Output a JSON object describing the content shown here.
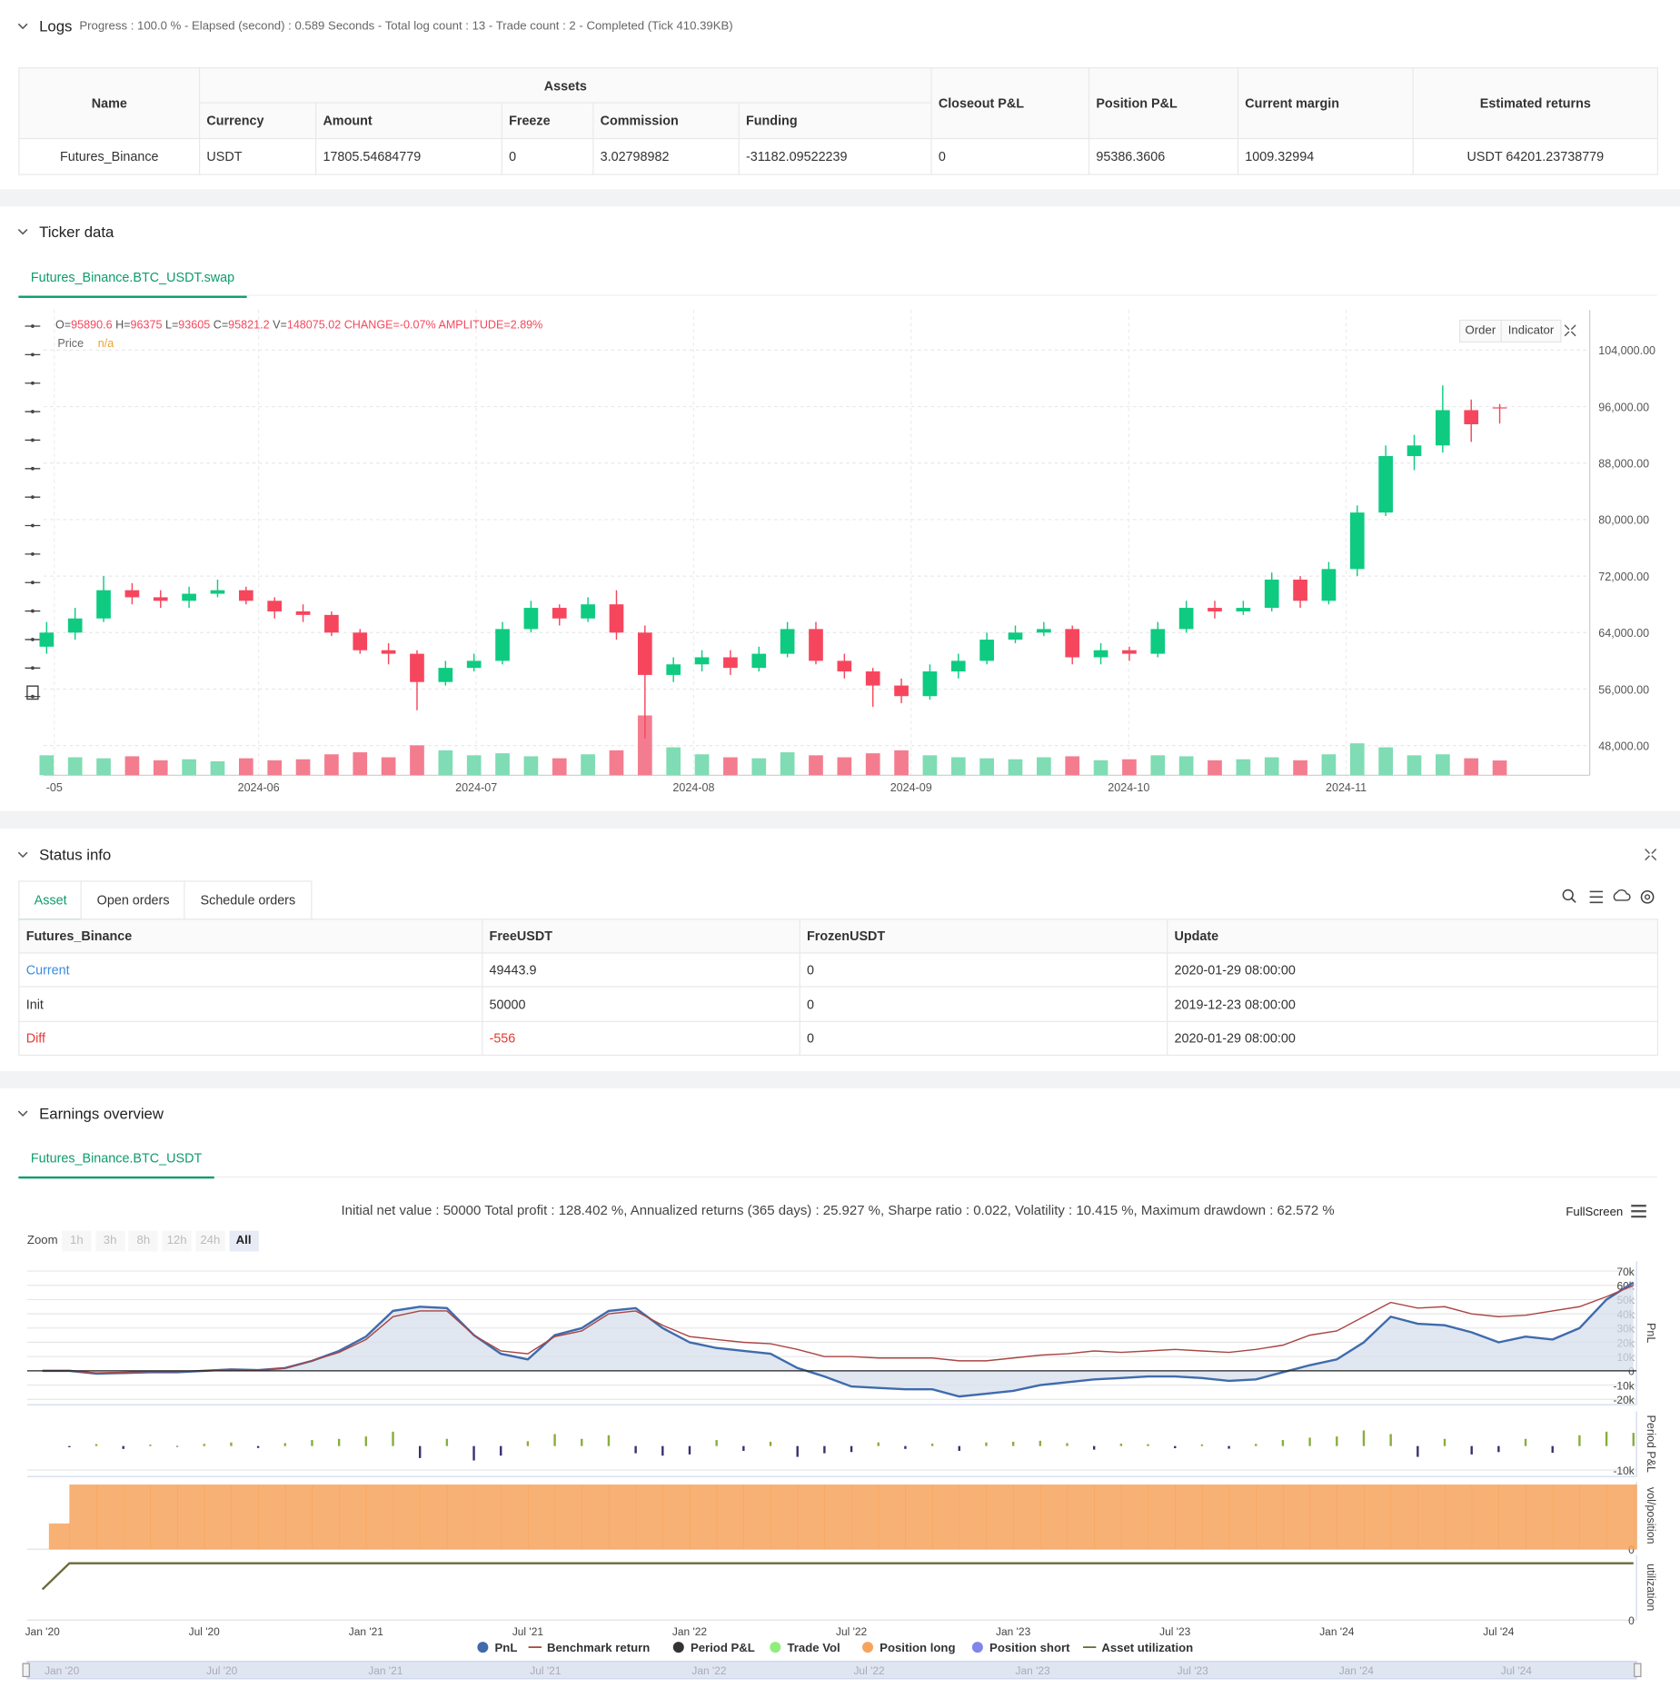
{
  "logs": {
    "title": "Logs",
    "summary": "Progress : 100.0 % - Elapsed (second) : 0.589  Seconds - Total log count : 13 - Trade count : 2 - Completed (Tick 410.39KB)",
    "table": {
      "headers": [
        "Name",
        "Assets",
        "Closeout P&L",
        "Position P&L",
        "Current margin",
        "Estimated returns"
      ],
      "subheaders": [
        "Currency",
        "Amount",
        "Freeze",
        "Commission",
        "Funding"
      ],
      "rows": [
        [
          "Futures_Binance",
          "USDT",
          "17805.54684779",
          "0",
          "3.02798982",
          "-31182.09522239",
          "0",
          "95386.3606",
          "1009.32994",
          "USDT 64201.23738779"
        ]
      ]
    }
  },
  "ticker": {
    "title": "Ticker data",
    "tab": "Futures_Binance.BTC_USDT.swap",
    "buttons": [
      "Order",
      "Indicator"
    ],
    "ohlc_labels": [
      "O=",
      "H=",
      "L=",
      "C=",
      "V="
    ],
    "change": "CHANGE=-0.07%",
    "amplitude": "AMPLITUDE=2.89%",
    "legend": {
      "label": "Price",
      "value": "n/a"
    }
  },
  "status": {
    "title": "Status info",
    "tabs": [
      "Asset",
      "Open orders",
      "Schedule orders"
    ],
    "table": {
      "headers": [
        "Futures_Binance",
        "FreeUSDT",
        "FrozenUSDT",
        "Update"
      ],
      "rows": [
        [
          "Current",
          "49443.9",
          "0",
          "2020-01-29 08:00:00"
        ],
        [
          "Init",
          "50000",
          "0",
          "2019-12-23 08:00:00"
        ],
        [
          "Diff",
          "-556",
          "0",
          "2020-01-29 08:00:00"
        ]
      ]
    }
  },
  "earnings": {
    "title": "Earnings overview",
    "tab": "Futures_Binance.BTC_USDT",
    "summary": "Initial net value : 50000 Total profit : 128.402 %, Annualized returns (365 days) : 25.927 %, Sharpe ratio : 0.022, Volatility : 10.415 %, Maximum drawdown : 62.572 %",
    "fullscreen": "FullScreen",
    "zoom_label": "Zoom",
    "zoom_buttons": [
      "1h",
      "3h",
      "8h",
      "12h",
      "24h",
      "All"
    ],
    "extra_legend": [
      {
        "name": "Trade Vol",
        "color": "#90ed7d"
      },
      {
        "name": "Position short",
        "color": "#8085e9"
      }
    ]
  },
  "chart_data": [
    {
      "type": "candlestick",
      "up_color": "#0ecb81",
      "down_color": "#f6465d",
      "volume_up_color": "#7fdcb4",
      "volume_down_color": "#f37d8f",
      "grid": true,
      "open": [
        62000,
        64000,
        66000,
        70000,
        69000,
        68500,
        69500,
        70000,
        68500,
        67000,
        66500,
        64000,
        61500,
        61000,
        57000,
        59000,
        60000,
        64500,
        67500,
        66000,
        68000,
        64000,
        58000,
        59500,
        60500,
        59000,
        61000,
        64500,
        60000,
        58500,
        56500,
        55000,
        58500,
        60000,
        63000,
        64000,
        64500,
        60500,
        61500,
        61000,
        64500,
        67500,
        67000,
        67500,
        71500,
        68500,
        73000,
        81000,
        89000,
        90500,
        95500,
        95890.6
      ],
      "high": [
        65500,
        67500,
        72000,
        71000,
        70000,
        70500,
        71500,
        70500,
        69000,
        68000,
        67000,
        64500,
        62500,
        61500,
        60000,
        61000,
        65500,
        68500,
        68000,
        69000,
        70000,
        65000,
        60500,
        61500,
        61500,
        62000,
        65500,
        65500,
        61000,
        59000,
        57500,
        59500,
        61000,
        64000,
        65000,
        65500,
        65000,
        62500,
        62000,
        65500,
        68500,
        68500,
        68500,
        72500,
        72000,
        74000,
        82000,
        90500,
        92000,
        99000,
        97000,
        96375
      ],
      "low": [
        61000,
        63000,
        65500,
        68000,
        67500,
        67500,
        69000,
        68000,
        66000,
        65500,
        63500,
        61000,
        59500,
        53000,
        56500,
        58500,
        59500,
        64000,
        65000,
        65500,
        63000,
        49000,
        57000,
        58500,
        58000,
        58500,
        60500,
        59500,
        57500,
        53500,
        54000,
        54500,
        57500,
        59500,
        62500,
        63500,
        59500,
        59500,
        60000,
        60500,
        64000,
        66000,
        66500,
        67000,
        67500,
        68000,
        72000,
        80500,
        87000,
        89500,
        91000,
        93605
      ],
      "close": [
        64000,
        66000,
        70000,
        69000,
        68500,
        69500,
        70000,
        68500,
        67000,
        66500,
        64000,
        61500,
        61000,
        57000,
        59000,
        60000,
        64500,
        67500,
        66000,
        68000,
        64000,
        58000,
        59500,
        60500,
        59000,
        61000,
        64500,
        60000,
        58500,
        56500,
        55000,
        58500,
        60000,
        63000,
        64000,
        64500,
        60500,
        61500,
        61000,
        64500,
        67500,
        67000,
        67500,
        71500,
        68500,
        73000,
        81000,
        89000,
        90500,
        95500,
        93500,
        95821.2
      ],
      "volume": [
        200000,
        180000,
        170000,
        190000,
        150000,
        160000,
        140000,
        170000,
        150000,
        160000,
        210000,
        230000,
        180000,
        300000,
        250000,
        200000,
        220000,
        190000,
        170000,
        210000,
        250000,
        600000,
        280000,
        210000,
        180000,
        170000,
        230000,
        200000,
        180000,
        220000,
        250000,
        200000,
        180000,
        170000,
        160000,
        180000,
        190000,
        150000,
        160000,
        200000,
        190000,
        150000,
        160000,
        180000,
        150000,
        210000,
        320000,
        280000,
        200000,
        210000,
        170000,
        148075.02
      ],
      "ylim": [
        43800,
        109700
      ],
      "yticks": [
        {
          "value": 48000,
          "label": "48,000.00"
        },
        {
          "value": 56000,
          "label": "56,000.00"
        },
        {
          "value": 64000,
          "label": "64,000.00"
        },
        {
          "value": 72000,
          "label": "72,000.00"
        },
        {
          "value": 80000,
          "label": "80,000.00"
        },
        {
          "value": 88000,
          "label": "88,000.00"
        },
        {
          "value": 96000,
          "label": "96,000.00"
        },
        {
          "value": 104000,
          "label": "104,000.00"
        }
      ],
      "xlim": [
        -0.11,
        54.16
      ],
      "xticks": [
        {
          "value": 0.27,
          "label": "-05"
        },
        {
          "value": 7.44,
          "label": "2024-06"
        },
        {
          "value": 15.08,
          "label": "2024-07"
        },
        {
          "value": 22.71,
          "label": "2024-08"
        },
        {
          "value": 30.34,
          "label": "2024-09"
        },
        {
          "value": 37.98,
          "label": "2024-10"
        },
        {
          "value": 45.61,
          "label": "2024-11"
        }
      ]
    },
    {
      "type": "line",
      "y_title": "PnL",
      "categories": [
        "Jan '20",
        null,
        null,
        null,
        null,
        null,
        "Jul '20",
        null,
        null,
        null,
        null,
        null,
        "Jan '21",
        null,
        null,
        null,
        null,
        null,
        "Jul '21",
        null,
        null,
        null,
        null,
        null,
        "Jan '22",
        null,
        null,
        null,
        null,
        null,
        "Jul '22",
        null,
        null,
        null,
        null,
        null,
        "Jan '23",
        null,
        null,
        null,
        null,
        null,
        "Jul '23",
        null,
        null,
        null,
        null,
        null,
        "Jan '24",
        null,
        null,
        null,
        null,
        null,
        "Jul '24",
        null,
        null,
        null,
        null,
        null
      ],
      "series": [
        {
          "name": "PnL",
          "color": "#3f6bad",
          "fill": "#d9e1ec",
          "values": [
            0,
            0,
            -2000,
            -1500,
            -1000,
            -1000,
            0,
            1000,
            500,
            2000,
            7000,
            14000,
            24000,
            42000,
            45000,
            44000,
            25000,
            12000,
            8000,
            25000,
            30000,
            42000,
            44000,
            30000,
            20000,
            16000,
            14000,
            12000,
            2000,
            -4000,
            -11000,
            -12000,
            -13000,
            -13000,
            -18000,
            -16000,
            -14000,
            -10000,
            -8000,
            -6000,
            -5000,
            -4000,
            -4000,
            -5000,
            -7000,
            -6000,
            -1000,
            4000,
            8000,
            20000,
            38000,
            33000,
            32000,
            27000,
            20000,
            24000,
            22000,
            30000,
            50000,
            62000
          ]
        },
        {
          "name": "Benchmark return",
          "color": "#aa4643",
          "values": [
            0,
            0,
            -1500,
            -1000,
            -500,
            -500,
            0,
            1000,
            500,
            2000,
            7000,
            13000,
            22000,
            38000,
            42000,
            42000,
            25000,
            14000,
            12000,
            24000,
            28000,
            40000,
            42000,
            32000,
            24000,
            22000,
            20000,
            19000,
            15000,
            10000,
            10000,
            9000,
            9000,
            9000,
            7000,
            7000,
            9000,
            11000,
            12000,
            14000,
            13000,
            14000,
            15000,
            14000,
            13000,
            15000,
            18000,
            25000,
            28000,
            38000,
            48000,
            44000,
            45000,
            40000,
            38000,
            39000,
            42000,
            45000,
            52000,
            60000
          ]
        }
      ],
      "ylim": [
        -23800,
        76900
      ],
      "yticks": [
        {
          "value": 70000,
          "label": "70k"
        },
        {
          "value": 60000,
          "label": "60k"
        },
        {
          "value": 50000,
          "label": "50k"
        },
        {
          "value": 40000,
          "label": "40k"
        },
        {
          "value": 30000,
          "label": "30k"
        },
        {
          "value": 20000,
          "label": "20k"
        },
        {
          "value": 10000,
          "label": "10k"
        },
        0,
        {
          "value": -10000,
          "label": "-10k"
        },
        {
          "value": -20000,
          "label": "-20k"
        }
      ]
    },
    {
      "type": "bar",
      "y_title": "Period P&L",
      "positive_color": "#8aac3c",
      "negative_color": "#3b2f6e",
      "series": [
        {
          "name": "Period P&L",
          "color": "#333333",
          "values": [
            0,
            -500,
            800,
            -1200,
            600,
            -300,
            900,
            1500,
            -800,
            1200,
            2500,
            3000,
            4000,
            6000,
            -5000,
            3000,
            -6000,
            -4000,
            2000,
            5000,
            3000,
            4500,
            -3000,
            -4000,
            -3500,
            2500,
            -2000,
            1800,
            -4500,
            -3000,
            -2500,
            1500,
            -1200,
            1000,
            -2000,
            1500,
            1800,
            2200,
            1200,
            -1500,
            1000,
            800,
            -900,
            700,
            -1100,
            900,
            2500,
            3500,
            4000,
            6500,
            5000,
            -4500,
            3000,
            -3500,
            -2500,
            3000,
            -2800,
            4500,
            6000,
            5500
          ]
        }
      ],
      "ylim": [
        -12700,
        14500
      ],
      "yticks": [
        {
          "value": -10000,
          "label": "-10k"
        }
      ]
    },
    {
      "type": "area",
      "y_title": "vol/position",
      "series": [
        {
          "name": "Position long",
          "color": "#f7a35c",
          "values": [
            20000,
            50000,
            50000,
            50000,
            50000,
            50000,
            50000,
            50000,
            50000,
            50000,
            50000,
            50000,
            50000,
            50000,
            50000,
            50000,
            50000,
            50000,
            50000,
            50000,
            50000,
            50000,
            50000,
            50000,
            50000,
            50000,
            50000,
            50000,
            50000,
            50000,
            50000,
            50000,
            50000,
            50000,
            50000,
            50000,
            50000,
            50000,
            50000,
            50000,
            50000,
            50000,
            50000,
            50000,
            50000,
            50000,
            50000,
            50000,
            50000,
            50000,
            50000,
            50000,
            50000,
            50000,
            50000,
            50000,
            50000,
            50000,
            50000,
            50000
          ]
        }
      ],
      "ylim": [
        0,
        52000
      ],
      "yticks": [
        0
      ]
    },
    {
      "type": "line",
      "y_title": "utilization",
      "series": [
        {
          "name": "Asset utilization",
          "color": "#6b6b3b",
          "values": [
            47,
            87,
            87,
            87,
            87,
            87,
            87,
            87,
            87,
            87,
            87,
            87,
            87,
            87,
            87,
            87,
            87,
            87,
            87,
            87,
            87,
            87,
            87,
            87,
            87,
            87,
            87,
            87,
            87,
            87,
            87,
            87,
            87,
            87,
            87,
            87,
            87,
            87,
            87,
            87,
            87,
            87,
            87,
            87,
            87,
            87,
            87,
            87,
            87,
            87,
            87,
            87,
            87,
            87,
            87,
            87,
            87,
            87,
            87,
            87
          ]
        }
      ],
      "ylim": [
        0,
        100
      ],
      "yticks": [
        0
      ]
    }
  ]
}
